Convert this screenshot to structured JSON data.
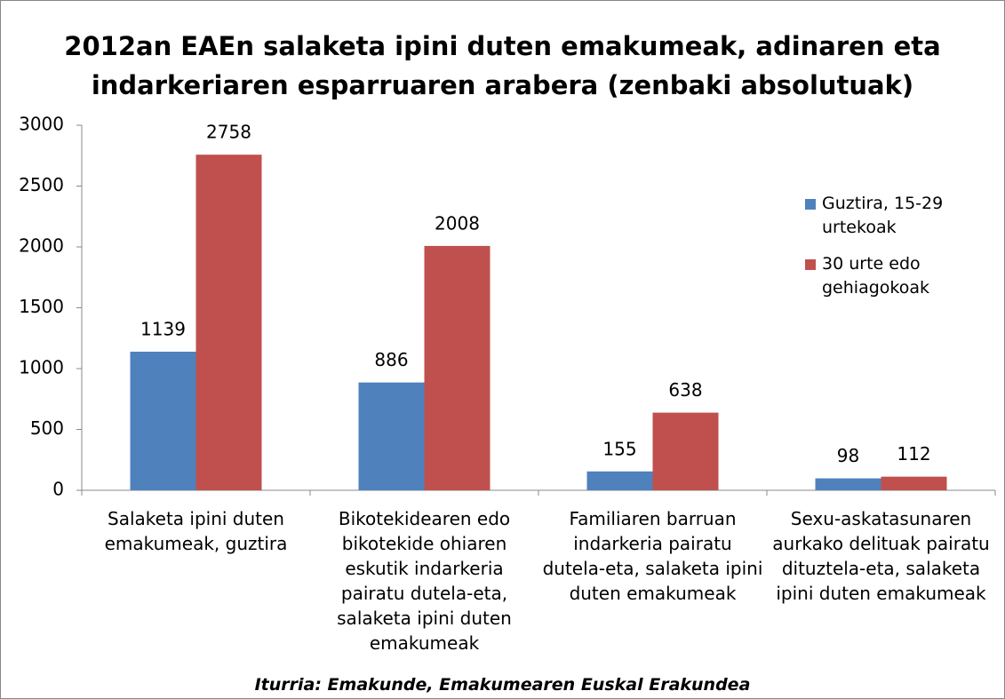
{
  "chart_data": {
    "type": "bar",
    "title": "2012an EAEn salaketa ipini duten emakumeak, adinaren eta indarkeriaren esparruaren arabera (zenbaki absolutuak)",
    "categories": [
      "Salaketa ipini duten emakumeak, guztira",
      "Bikotekidearen edo bikotekide ohiaren eskutik indarkeria pairatu dutela-eta, salaketa ipini duten emakumeak",
      "Familiaren barruan indarkeria pairatu dutela-eta, salaketa ipini duten emakumeak",
      "Sexu-askatasunaren aurkako delituak pairatu dituztela-eta, salaketa ipini duten emakumeak"
    ],
    "series": [
      {
        "name": "Guztira, 15-29 urtekoak",
        "color": "#4f81bd",
        "values": [
          1139,
          886,
          155,
          98
        ]
      },
      {
        "name": "30 urte edo gehiagokoak",
        "color": "#c0504d",
        "values": [
          2758,
          2008,
          638,
          112
        ]
      }
    ],
    "ylim": [
      0,
      3000
    ],
    "yticks": [
      0,
      500,
      1000,
      1500,
      2000,
      2500,
      3000
    ],
    "grid": false,
    "legend": "right",
    "source": "Iturria: Emakunde, Emakumearen Euskal Erakundea"
  }
}
